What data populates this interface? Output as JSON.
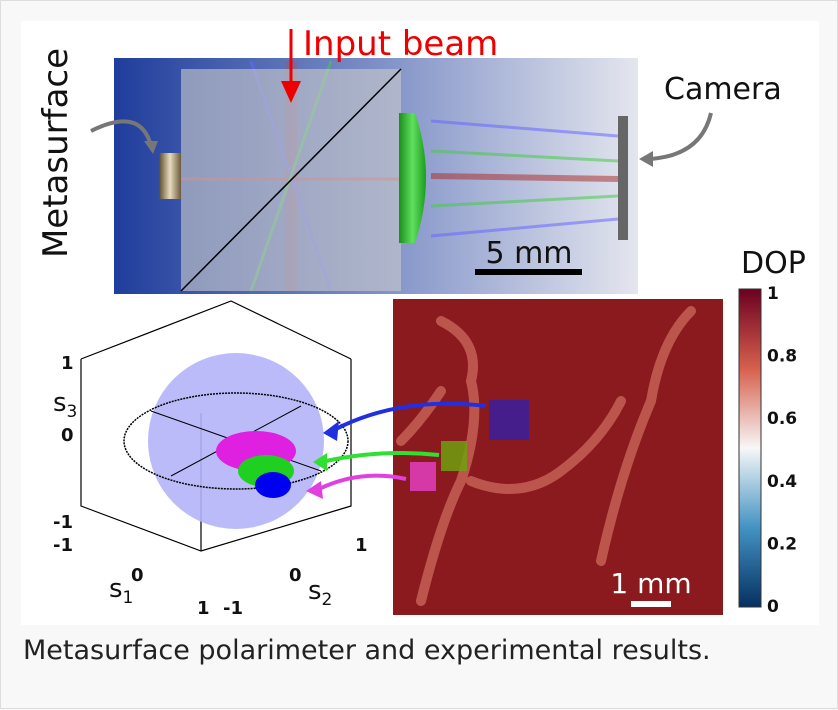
{
  "figure": {
    "setup": {
      "input_label": "Input beam",
      "metasurface_label": "Metasurface",
      "camera_label": "Camera",
      "scale_bar": "5 mm"
    },
    "sphere": {
      "s1": {
        "base": "s",
        "sub": "1"
      },
      "s2": {
        "base": "s",
        "sub": "2"
      },
      "s3": {
        "base": "s",
        "sub": "3"
      },
      "s3_ticks": [
        "1",
        "0",
        "-1"
      ],
      "s1_ticks": [
        "-1",
        "0",
        "1"
      ],
      "s2_ticks": [
        "1",
        "0",
        "-1"
      ],
      "corner_tick": "-1"
    },
    "map": {
      "scale_bar": "1 mm"
    },
    "colorbar": {
      "title": "DOP",
      "ticks": [
        "1",
        "0.8",
        "0.6",
        "0.4",
        "0.2",
        "0"
      ]
    },
    "caption": "Metasurface polarimeter and experimental results."
  }
}
